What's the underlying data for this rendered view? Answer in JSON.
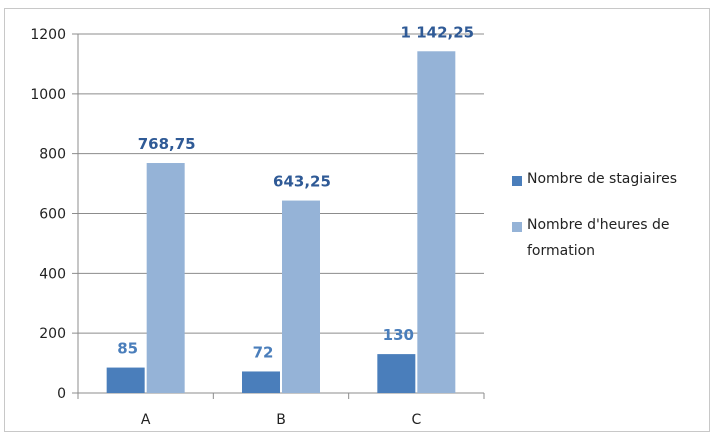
{
  "chart_data": {
    "type": "bar",
    "categories": [
      "A",
      "B",
      "C"
    ],
    "series": [
      {
        "name": "Nombre de stagiaires",
        "values": [
          85,
          72,
          130
        ],
        "labels": [
          "85",
          "72",
          "130"
        ],
        "color": "#4a7ebb",
        "label_color": "#4a7ebb"
      },
      {
        "name": "Nombre d'heures de formation",
        "values": [
          768.75,
          643.25,
          1142.25
        ],
        "labels": [
          "768,75",
          "643,25",
          "1 142,25"
        ],
        "color": "#95b3d7",
        "label_color": "#2f5a96"
      }
    ],
    "ylim": [
      0,
      1200
    ],
    "yticks": [
      0,
      200,
      400,
      600,
      800,
      1000,
      1200
    ],
    "grid": true,
    "legend_position": "right",
    "title": "",
    "xlabel": "",
    "ylabel": ""
  }
}
